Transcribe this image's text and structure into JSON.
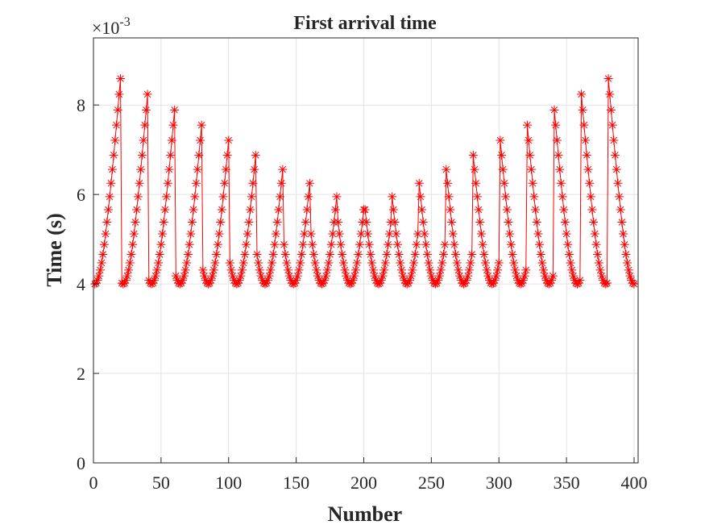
{
  "chart_data": {
    "type": "line",
    "title": "First arrival time",
    "x_label": "Number",
    "y_label": "Time (s)",
    "y_scale_base": "×10",
    "y_scale_exponent": "-3",
    "color": "#ff0000",
    "marker": "asterisk",
    "grid": true,
    "xlim": [
      0,
      403
    ],
    "ylim": [
      0,
      9.5
    ],
    "xticks": [
      0,
      50,
      100,
      150,
      200,
      250,
      300,
      350,
      400
    ],
    "yticks": [
      0,
      2,
      4,
      6,
      8
    ],
    "x": [
      1,
      2,
      3,
      4,
      5,
      6,
      7,
      8,
      9,
      10,
      11,
      12,
      13,
      14,
      15,
      16,
      17,
      18,
      19,
      20,
      21,
      22,
      23,
      24,
      25,
      26,
      27,
      28,
      29,
      30,
      31,
      32,
      33,
      34,
      35,
      36,
      37,
      38,
      39,
      40,
      41,
      42,
      43,
      44,
      45,
      46,
      47,
      48,
      49,
      50,
      51,
      52,
      53,
      54,
      55,
      56,
      57,
      58,
      59,
      60,
      61,
      62,
      63,
      64,
      65,
      66,
      67,
      68,
      69,
      70,
      71,
      72,
      73,
      74,
      75,
      76,
      77,
      78,
      79,
      80,
      81,
      82,
      83,
      84,
      85,
      86,
      87,
      88,
      89,
      90,
      91,
      92,
      93,
      94,
      95,
      96,
      97,
      98,
      99,
      100,
      101,
      102,
      103,
      104,
      105,
      106,
      107,
      108,
      109,
      110,
      111,
      112,
      113,
      114,
      115,
      116,
      117,
      118,
      119,
      120,
      121,
      122,
      123,
      124,
      125,
      126,
      127,
      128,
      129,
      130,
      131,
      132,
      133,
      134,
      135,
      136,
      137,
      138,
      139,
      140,
      141,
      142,
      143,
      144,
      145,
      146,
      147,
      148,
      149,
      150,
      151,
      152,
      153,
      154,
      155,
      156,
      157,
      158,
      159,
      160,
      161,
      162,
      163,
      164,
      165,
      166,
      167,
      168,
      169,
      170,
      171,
      172,
      173,
      174,
      175,
      176,
      177,
      178,
      179,
      180,
      181,
      182,
      183,
      184,
      185,
      186,
      187,
      188,
      189,
      190,
      191,
      192,
      193,
      194,
      195,
      196,
      197,
      198,
      199,
      200,
      201,
      202,
      203,
      204,
      205,
      206,
      207,
      208,
      209,
      210,
      211,
      212,
      213,
      214,
      215,
      216,
      217,
      218,
      219,
      220,
      221,
      222,
      223,
      224,
      225,
      226,
      227,
      228,
      229,
      230,
      231,
      232,
      233,
      234,
      235,
      236,
      237,
      238,
      239,
      240,
      241,
      242,
      243,
      244,
      245,
      246,
      247,
      248,
      249,
      250,
      251,
      252,
      253,
      254,
      255,
      256,
      257,
      258,
      259,
      260,
      261,
      262,
      263,
      264,
      265,
      266,
      267,
      268,
      269,
      270,
      271,
      272,
      273,
      274,
      275,
      276,
      277,
      278,
      279,
      280,
      281,
      282,
      283,
      284,
      285,
      286,
      287,
      288,
      289,
      290,
      291,
      292,
      293,
      294,
      295,
      296,
      297,
      298,
      299,
      300,
      301,
      302,
      303,
      304,
      305,
      306,
      307,
      308,
      309,
      310,
      311,
      312,
      313,
      314,
      315,
      316,
      317,
      318,
      319,
      320,
      321,
      322,
      323,
      324,
      325,
      326,
      327,
      328,
      329,
      330,
      331,
      332,
      333,
      334,
      335,
      336,
      337,
      338,
      339,
      340,
      341,
      342,
      343,
      344,
      345,
      346,
      347,
      348,
      349,
      350,
      351,
      352,
      353,
      354,
      355,
      356,
      357,
      358,
      359,
      360,
      361,
      362,
      363,
      364,
      365,
      366,
      367,
      368,
      369,
      370,
      371,
      372,
      373,
      374,
      375,
      376,
      377,
      378,
      379,
      380,
      381,
      382,
      383,
      384,
      385,
      386,
      387,
      388,
      389,
      390,
      391,
      392,
      393,
      394,
      395,
      396,
      397,
      398,
      399,
      400
    ],
    "values": [
      4,
      4.02,
      4.08,
      4.18,
      4.31,
      4.47,
      4.66,
      4.88,
      5.12,
      5.38,
      5.66,
      5.95,
      6.25,
      6.56,
      6.88,
      7.21,
      7.55,
      7.89,
      8.24,
      8.59,
      4.02,
      4,
      4.02,
      4.08,
      4.18,
      4.31,
      4.47,
      4.66,
      4.88,
      5.12,
      5.38,
      5.66,
      5.95,
      6.25,
      6.56,
      6.88,
      7.21,
      7.55,
      7.89,
      8.24,
      4.08,
      4.02,
      4,
      4.02,
      4.08,
      4.18,
      4.31,
      4.47,
      4.66,
      4.88,
      5.12,
      5.38,
      5.66,
      5.95,
      6.25,
      6.56,
      6.88,
      7.21,
      7.55,
      7.89,
      4.18,
      4.08,
      4.02,
      4,
      4.02,
      4.08,
      4.18,
      4.31,
      4.47,
      4.66,
      4.88,
      5.12,
      5.38,
      5.66,
      5.95,
      6.25,
      6.56,
      6.88,
      7.21,
      7.55,
      4.31,
      4.18,
      4.08,
      4.02,
      4,
      4.02,
      4.08,
      4.18,
      4.31,
      4.47,
      4.66,
      4.88,
      5.12,
      5.38,
      5.66,
      5.95,
      6.25,
      6.56,
      6.88,
      7.21,
      4.47,
      4.31,
      4.18,
      4.08,
      4.02,
      4,
      4.02,
      4.08,
      4.18,
      4.31,
      4.47,
      4.66,
      4.88,
      5.12,
      5.38,
      5.66,
      5.95,
      6.25,
      6.56,
      6.88,
      4.66,
      4.47,
      4.31,
      4.18,
      4.08,
      4.02,
      4,
      4.02,
      4.08,
      4.18,
      4.31,
      4.47,
      4.66,
      4.88,
      5.12,
      5.38,
      5.66,
      5.95,
      6.25,
      6.56,
      4.88,
      4.66,
      4.47,
      4.31,
      4.18,
      4.08,
      4.02,
      4,
      4.02,
      4.08,
      4.18,
      4.31,
      4.47,
      4.66,
      4.88,
      5.12,
      5.38,
      5.66,
      5.95,
      6.25,
      5.12,
      4.88,
      4.66,
      4.47,
      4.31,
      4.18,
      4.08,
      4.02,
      4,
      4.02,
      4.08,
      4.18,
      4.31,
      4.47,
      4.66,
      4.88,
      5.12,
      5.38,
      5.66,
      5.95,
      5.38,
      5.12,
      4.88,
      4.66,
      4.47,
      4.31,
      4.18,
      4.08,
      4.02,
      4,
      4.02,
      4.08,
      4.18,
      4.31,
      4.47,
      4.66,
      4.88,
      5.12,
      5.38,
      5.66,
      5.66,
      5.38,
      5.12,
      4.88,
      4.66,
      4.47,
      4.31,
      4.18,
      4.08,
      4.02,
      4,
      4.02,
      4.08,
      4.18,
      4.31,
      4.47,
      4.66,
      4.88,
      5.12,
      5.38,
      5.95,
      5.66,
      5.38,
      5.12,
      4.88,
      4.66,
      4.47,
      4.31,
      4.18,
      4.08,
      4.02,
      4,
      4.02,
      4.08,
      4.18,
      4.31,
      4.47,
      4.66,
      4.88,
      5.12,
      6.25,
      5.95,
      5.66,
      5.38,
      5.12,
      4.88,
      4.66,
      4.47,
      4.31,
      4.18,
      4.08,
      4.02,
      4,
      4.02,
      4.08,
      4.18,
      4.31,
      4.47,
      4.66,
      4.88,
      6.56,
      6.25,
      5.95,
      5.66,
      5.38,
      5.12,
      4.88,
      4.66,
      4.47,
      4.31,
      4.18,
      4.08,
      4.02,
      4,
      4.02,
      4.08,
      4.18,
      4.31,
      4.47,
      4.66,
      6.88,
      6.56,
      6.25,
      5.95,
      5.66,
      5.38,
      5.12,
      4.88,
      4.66,
      4.47,
      4.31,
      4.18,
      4.08,
      4.02,
      4,
      4.02,
      4.08,
      4.18,
      4.31,
      4.47,
      7.21,
      6.88,
      6.56,
      6.25,
      5.95,
      5.66,
      5.38,
      5.12,
      4.88,
      4.66,
      4.47,
      4.31,
      4.18,
      4.08,
      4.02,
      4,
      4.02,
      4.08,
      4.18,
      4.31,
      7.55,
      7.21,
      6.88,
      6.56,
      6.25,
      5.95,
      5.66,
      5.38,
      5.12,
      4.88,
      4.66,
      4.47,
      4.31,
      4.18,
      4.08,
      4.02,
      4,
      4.02,
      4.08,
      4.18,
      7.89,
      7.55,
      7.21,
      6.88,
      6.56,
      6.25,
      5.95,
      5.66,
      5.38,
      5.12,
      4.88,
      4.66,
      4.47,
      4.31,
      4.18,
      4.08,
      4.02,
      4,
      4.02,
      4.08,
      8.24,
      7.89,
      7.55,
      7.21,
      6.88,
      6.56,
      6.25,
      5.95,
      5.66,
      5.38,
      5.12,
      4.88,
      4.66,
      4.47,
      4.31,
      4.18,
      4.08,
      4.02,
      4,
      4.02,
      8.59,
      8.24,
      7.89,
      7.55,
      7.21,
      6.88,
      6.56,
      6.25,
      5.95,
      5.66,
      5.38,
      5.12,
      4.88,
      4.66,
      4.47,
      4.31,
      4.18,
      4.08,
      4.02,
      4
    ]
  }
}
